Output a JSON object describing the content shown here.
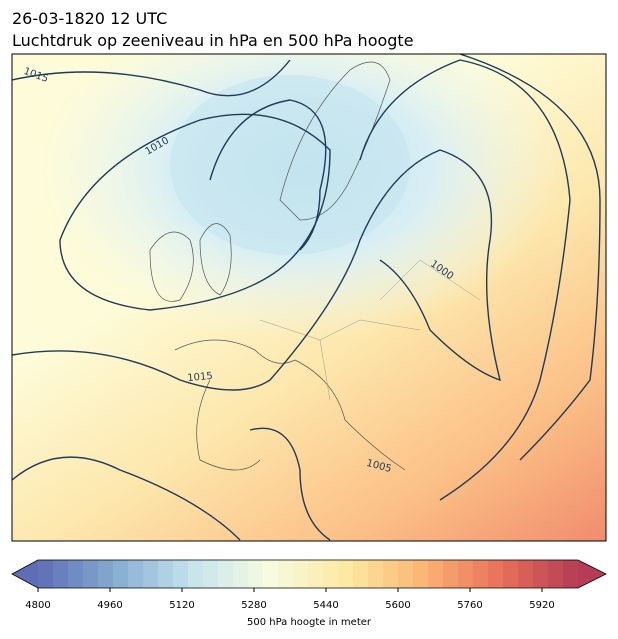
{
  "header": {
    "date": "26-03-1820 12 UTC",
    "title": "Luchtdruk op zeeniveau in hPa en 500 hPa hoogte"
  },
  "isobar_labels": [
    1015,
    1010,
    1000,
    1015,
    1005
  ],
  "colorbar": {
    "label": "500 hPa hoogte in meter",
    "lim": [
      4800,
      6000
    ],
    "ticks": [
      4800,
      4960,
      5120,
      5280,
      5440,
      5600,
      5760,
      5920
    ],
    "colors": [
      "#5e6db5",
      "#86acd0",
      "#c6e4ef",
      "#f7fbe0",
      "#fde9a2",
      "#fbb574",
      "#e8705a",
      "#b43c54"
    ]
  }
}
